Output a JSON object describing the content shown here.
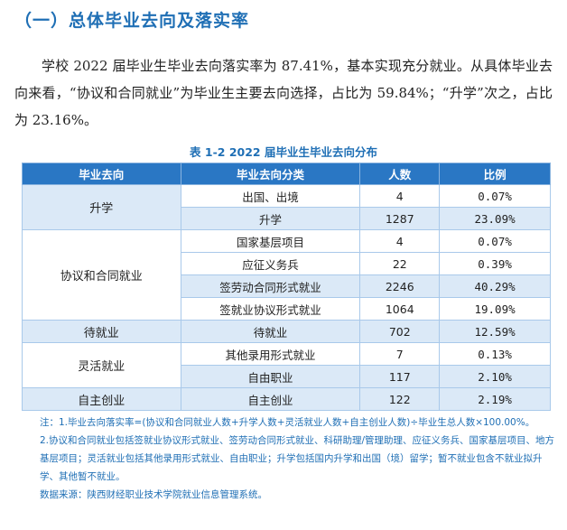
{
  "heading": "（一）总体毕业去向及落实率",
  "paragraph": "学校 2022 届毕业生毕业去向落实率为 87.41%，基本实现充分就业。从具体毕业去向来看，“协议和合同就业”为毕业生主要去向选择，占比为 59.84%；“升学”次之，占比为 23.16%。",
  "table": {
    "caption": "表 1-2    2022 届毕业生毕业去向分布",
    "headers": [
      "毕业去向",
      "毕业去向分类",
      "人数",
      "比例"
    ],
    "groups": [
      {
        "label": "升学",
        "rows": [
          {
            "sub": "出国、出境",
            "count": "4",
            "pct": "0.07%"
          },
          {
            "sub": "升学",
            "count": "1287",
            "pct": "23.09%"
          }
        ]
      },
      {
        "label": "协议和合同就业",
        "rows": [
          {
            "sub": "国家基层项目",
            "count": "4",
            "pct": "0.07%"
          },
          {
            "sub": "应征义务兵",
            "count": "22",
            "pct": "0.39%"
          },
          {
            "sub": "签劳动合同形式就业",
            "count": "2246",
            "pct": "40.29%"
          },
          {
            "sub": "签就业协议形式就业",
            "count": "1064",
            "pct": "19.09%"
          }
        ]
      },
      {
        "label": "待就业",
        "rows": [
          {
            "sub": "待就业",
            "count": "702",
            "pct": "12.59%"
          }
        ]
      },
      {
        "label": "灵活就业",
        "rows": [
          {
            "sub": "其他录用形式就业",
            "count": "7",
            "pct": "0.13%"
          },
          {
            "sub": "自由职业",
            "count": "117",
            "pct": "2.10%"
          }
        ]
      },
      {
        "label": "自主创业",
        "rows": [
          {
            "sub": "自主创业",
            "count": "122",
            "pct": "2.19%"
          }
        ]
      }
    ]
  },
  "notes": {
    "note1": "注：1.毕业去向落实率=(协议和合同就业人数+升学人数+灵活就业人数+自主创业人数)÷毕业生总人数×100.00%。",
    "note2": "2.协议和合同就业包括签就业协议形式就业、签劳动合同形式就业、科研助理/管理助理、应征义务兵、国家基层项目、地方基层项目；灵活就业包括其他录用形式就业、自由职业；升学包括国内升学和出国（境）留学；暂不就业包含不就业拟升学、其他暂不就业。",
    "source": "数据来源：陕西财经职业技术学院就业信息管理系统。"
  },
  "colors": {
    "accent": "#1f6fb5",
    "header_bg": "#2a77c4",
    "row_blue": "#dbe9f7"
  }
}
